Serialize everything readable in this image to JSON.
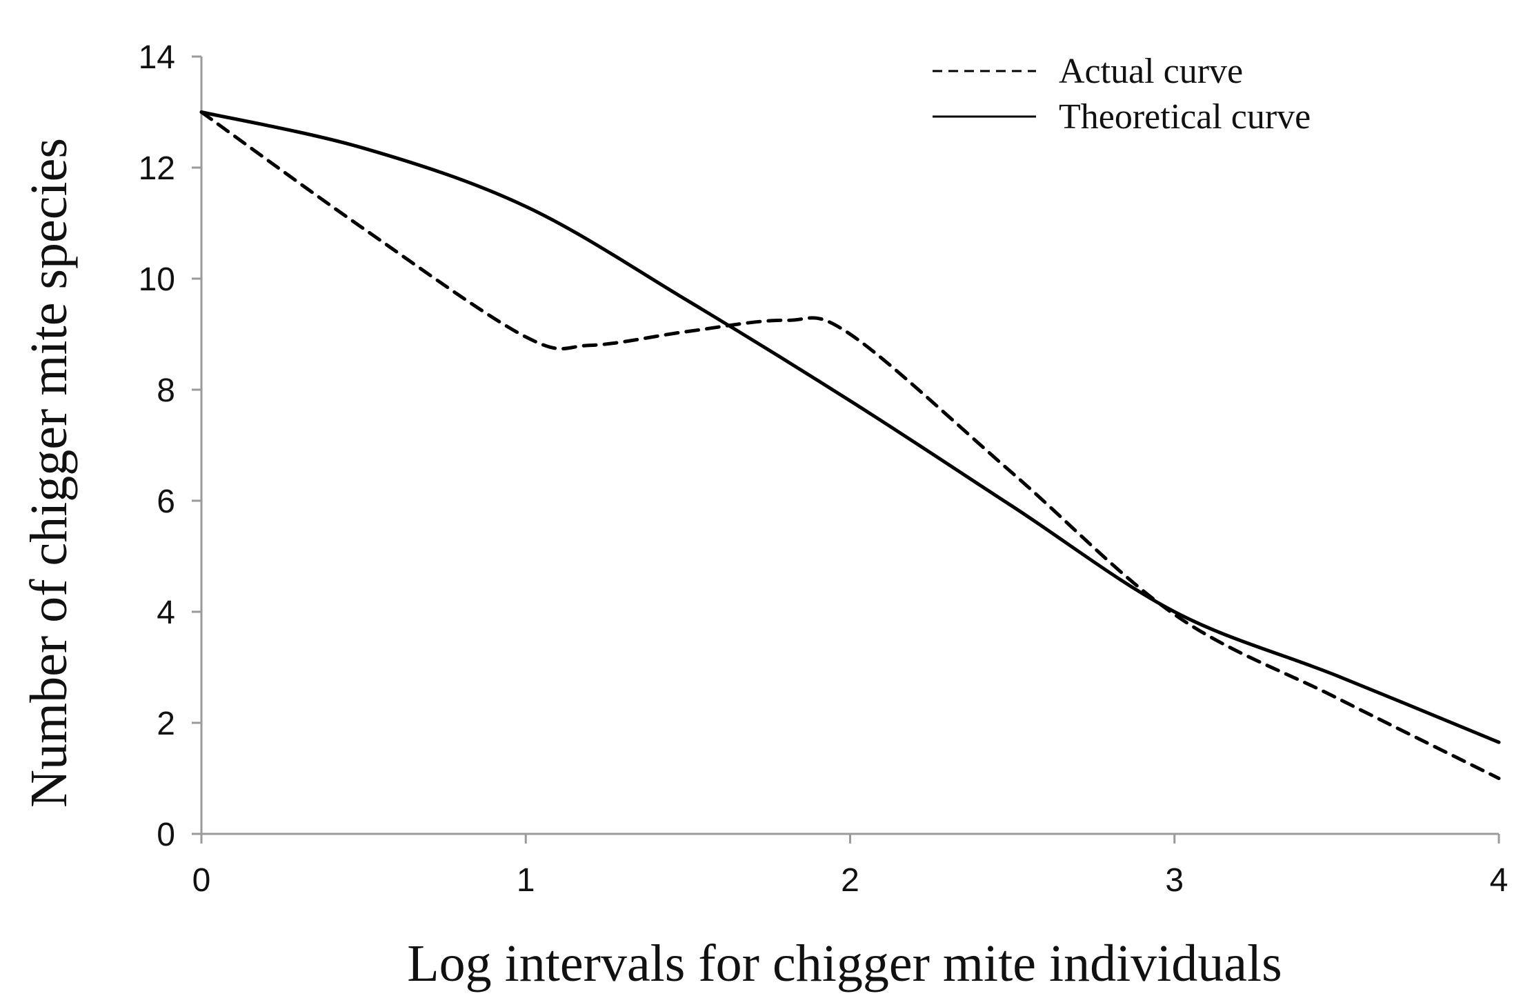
{
  "chart_data": {
    "type": "line",
    "title": "",
    "xlabel": "Log intervals for chigger mite individuals",
    "ylabel": "Number of chigger mite species",
    "xlim": [
      0,
      4
    ],
    "ylim": [
      0,
      14
    ],
    "xticks": [
      0,
      1,
      2,
      3,
      4
    ],
    "yticks": [
      0,
      2,
      4,
      6,
      8,
      10,
      12,
      14
    ],
    "xtick_labels": [
      "0",
      "1",
      "2",
      "3",
      "4"
    ],
    "ytick_labels": [
      "0",
      "2",
      "4",
      "6",
      "8",
      "10",
      "12",
      "14"
    ],
    "grid": false,
    "legend_position": "top-right",
    "series": [
      {
        "name": "Actual curve",
        "style": "dashed",
        "color": "#000000",
        "x": [
          0,
          0.5,
          1,
          1.2,
          1.5,
          1.8,
          2,
          2.5,
          3,
          3.5,
          4
        ],
        "y": [
          13,
          10.9,
          8.95,
          8.8,
          9.05,
          9.25,
          9.0,
          6.5,
          3.95,
          2.45,
          1.0
        ]
      },
      {
        "name": "Theoretical curve",
        "style": "solid",
        "color": "#000000",
        "x": [
          0,
          0.5,
          1,
          1.5,
          2,
          2.5,
          3,
          3.5,
          4
        ],
        "y": [
          13,
          12.35,
          11.3,
          9.6,
          7.8,
          5.9,
          4.0,
          2.85,
          1.65
        ]
      }
    ]
  }
}
